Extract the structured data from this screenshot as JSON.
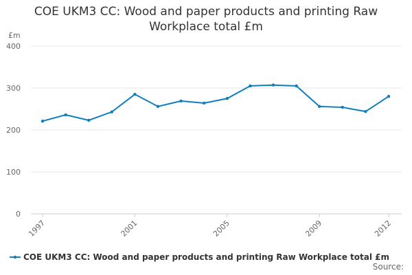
{
  "chart_data": {
    "type": "line",
    "title": "COE UKM3 CC: Wood and paper products and printing Raw Workplace total £m",
    "y_label": "£m",
    "source": "Source:",
    "x": [
      1997,
      1998,
      1999,
      2000,
      2001,
      2002,
      2003,
      2004,
      2005,
      2006,
      2007,
      2008,
      2009,
      2010,
      2011,
      2012
    ],
    "series": [
      {
        "name": "COE UKM3 CC: Wood and paper products and printing Raw Workplace total £m",
        "color": "#0e7dbd",
        "values": [
          221,
          236,
          223,
          243,
          285,
          256,
          269,
          264,
          275,
          305,
          307,
          305,
          256,
          254,
          244,
          280
        ]
      }
    ],
    "xlim": [
      1997,
      2012
    ],
    "xticks": [
      1997,
      2001,
      2005,
      2009,
      2012
    ],
    "ylim": [
      0,
      400
    ],
    "yticks": [
      0,
      100,
      200,
      300,
      400
    ],
    "grid": true
  }
}
